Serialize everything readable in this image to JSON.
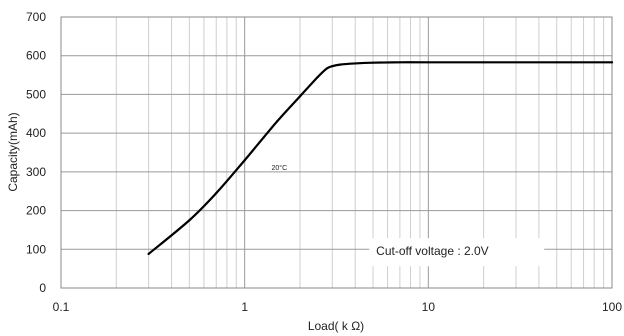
{
  "chart_data": {
    "type": "line",
    "title": "",
    "xlabel": "Load( k Ω)",
    "ylabel": "Capacity(mAh)",
    "x_scale": "log",
    "xlim": [
      0.1,
      100
    ],
    "ylim": [
      0,
      700
    ],
    "x_ticks": [
      0.1,
      1,
      10,
      100
    ],
    "x_tick_labels": [
      "0.1",
      "1",
      "10",
      "100"
    ],
    "y_ticks": [
      0,
      100,
      200,
      300,
      400,
      500,
      600,
      700
    ],
    "y_tick_labels": [
      "0",
      "100",
      "200",
      "300",
      "400",
      "500",
      "600",
      "700"
    ],
    "grid": true,
    "series": [
      {
        "x": [
          0.3,
          0.5,
          0.7,
          1,
          1.5,
          2,
          2.5,
          2.8,
          3,
          3.3,
          4,
          5,
          7,
          10,
          20,
          50,
          100
        ],
        "y": [
          88,
          175,
          245,
          330,
          430,
          495,
          545,
          567,
          573,
          577,
          580,
          582,
          583,
          583,
          583,
          583,
          583
        ],
        "color": "#000000"
      }
    ],
    "annotations": [
      {
        "text": "20°C",
        "x": 1.4,
        "y": 305
      },
      {
        "text": "Cut-off voltage : 2.0V",
        "x": 5.2,
        "y": 95
      }
    ]
  }
}
